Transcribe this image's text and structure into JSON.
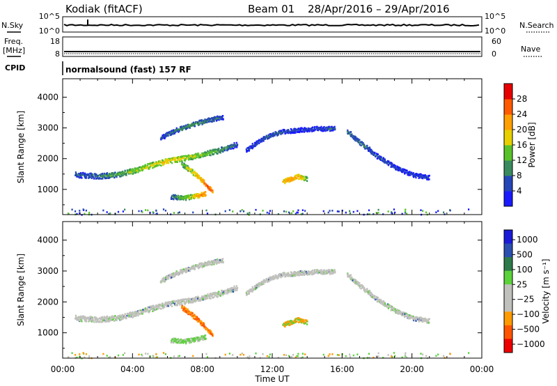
{
  "header": {
    "station": "Kodiak (fitACF)",
    "beam": "Beam 01",
    "date_range": "28/Apr/2016 – 29/Apr/2016"
  },
  "top_panels": {
    "noise": {
      "left_label": "N.Sky",
      "left_ticks": [
        "10^5",
        "10^0"
      ],
      "right_ticks": [
        "10^5",
        "10^0"
      ],
      "right_label": "N.Search"
    },
    "freq": {
      "left_label_1": "Freq.",
      "left_label_2": "[MHz]",
      "left_ticks": [
        "18",
        "8"
      ],
      "right_ticks": [
        "60",
        "0"
      ],
      "right_label": "Nave"
    },
    "cpid": {
      "label": "CPID",
      "text": "normalsound (fast) 157 RF"
    }
  },
  "colors": {
    "power": [
      "#1a1aff",
      "#2546b8",
      "#3a8a5e",
      "#59c22a",
      "#e7cf00",
      "#ff9f00",
      "#ff5a00",
      "#e80000"
    ],
    "velocity": [
      "#ee0000",
      "#ff5500",
      "#ff9a00",
      "#c0c0bc",
      "#c0c0bc",
      "#5bd23a",
      "#2e7a4a",
      "#2a4fb0",
      "#1a1ad8"
    ]
  },
  "chart_data": [
    {
      "type": "heatmap",
      "title": "",
      "xlabel": "",
      "ylabel": "Slant Range [km]",
      "x_ticks": [
        "00:00",
        "04:00",
        "08:00",
        "12:00",
        "16:00",
        "20:00",
        "00:00"
      ],
      "xlim_hours": [
        0,
        24
      ],
      "y_ticks": [
        1000,
        2000,
        3000,
        4000
      ],
      "ylim": [
        180,
        4600
      ],
      "colorbar": {
        "label": "Power [dB]",
        "ticks": [
          "28",
          "24",
          "20",
          "16",
          "12",
          "8",
          "4"
        ],
        "range": [
          0,
          32
        ]
      },
      "echo_regions": [
        {
          "name": "main band",
          "points": [
            [
              0.7,
              1500,
              8
            ],
            [
              2,
              1450,
              10
            ],
            [
              3,
              1500,
              12
            ],
            [
              4,
              1620,
              16
            ],
            [
              5,
              1800,
              18
            ],
            [
              6,
              1950,
              20
            ],
            [
              7,
              2050,
              18
            ],
            [
              8,
              2150,
              16
            ],
            [
              9,
              2300,
              12
            ],
            [
              10,
              2500,
              8
            ]
          ]
        },
        {
          "name": "descending tongue",
          "points": [
            [
              6.8,
              1850,
              14
            ],
            [
              7.4,
              1600,
              20
            ],
            [
              8.0,
              1300,
              24
            ],
            [
              8.3,
              1100,
              28
            ],
            [
              8.6,
              950,
              24
            ]
          ]
        },
        {
          "name": "lower echo",
          "points": [
            [
              6.2,
              780,
              10
            ],
            [
              7,
              750,
              16
            ],
            [
              7.7,
              820,
              22
            ],
            [
              8.2,
              900,
              26
            ]
          ]
        },
        {
          "name": "upper arc",
          "points": [
            [
              5.6,
              2700,
              8
            ],
            [
              6.5,
              2950,
              10
            ],
            [
              7.5,
              3150,
              12
            ],
            [
              8.5,
              3300,
              10
            ],
            [
              9.2,
              3380,
              8
            ]
          ]
        },
        {
          "name": "rising arc",
          "points": [
            [
              10.5,
              2300,
              6
            ],
            [
              11.5,
              2700,
              8
            ],
            [
              12.5,
              2900,
              8
            ],
            [
              13.5,
              2950,
              6
            ],
            [
              14.5,
              3000,
              6
            ],
            [
              15.6,
              3000,
              8
            ]
          ]
        },
        {
          "name": "late arcs",
          "points": [
            [
              16.3,
              2900,
              8
            ],
            [
              17,
              2550,
              10
            ],
            [
              18,
              2100,
              8
            ],
            [
              19,
              1750,
              6
            ],
            [
              20,
              1500,
              6
            ],
            [
              21,
              1400,
              6
            ]
          ]
        },
        {
          "name": "small patch",
          "points": [
            [
              12.6,
              1280,
              20
            ],
            [
              13.0,
              1350,
              24
            ],
            [
              13.5,
              1450,
              22
            ],
            [
              14.0,
              1350,
              16
            ]
          ]
        }
      ]
    },
    {
      "type": "heatmap",
      "title": "",
      "xlabel": "Time UT",
      "ylabel": "Slant Range [km]",
      "x_ticks": [
        "00:00",
        "04:00",
        "08:00",
        "12:00",
        "16:00",
        "20:00",
        "00:00"
      ],
      "xlim_hours": [
        0,
        24
      ],
      "y_ticks": [
        1000,
        2000,
        3000,
        4000
      ],
      "ylim": [
        180,
        4600
      ],
      "colorbar": {
        "label": "Velocity [m s⁻¹]",
        "ticks": [
          "1000",
          "500",
          "100",
          "25",
          "−25",
          "−100",
          "−500",
          "−1000"
        ]
      }
    }
  ]
}
